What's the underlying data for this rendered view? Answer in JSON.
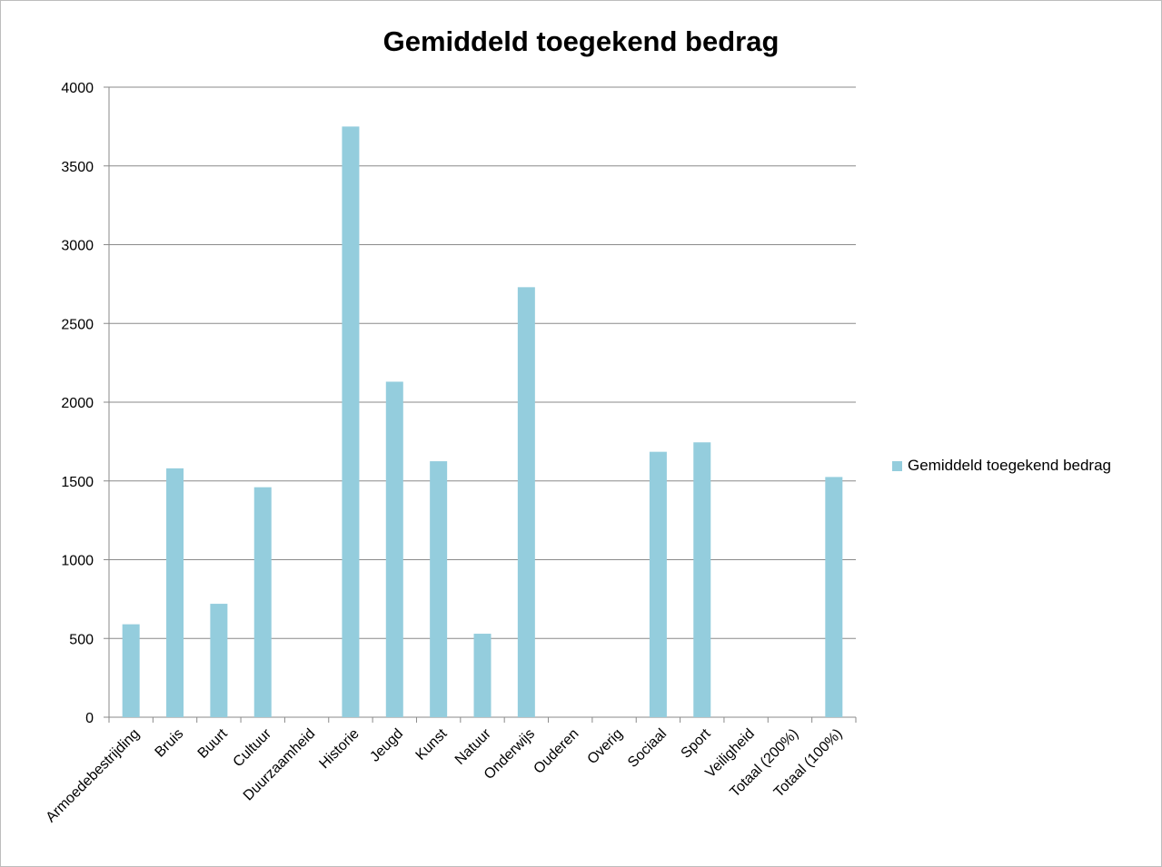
{
  "chart_data": {
    "type": "bar",
    "title": "Gemiddeld toegekend bedrag",
    "categories": [
      "Armoedebestrijding",
      "Bruis",
      "Buurt",
      "Cultuur",
      "Duurzaamheid",
      "Historie",
      "Jeugd",
      "Kunst",
      "Natuur",
      "Onderwijs",
      "Ouderen",
      "Overig",
      "Sociaal",
      "Sport",
      "Veiligheid",
      "Totaal (200%)",
      "Totaal (100%)"
    ],
    "series": [
      {
        "name": "Gemiddeld toegekend bedrag",
        "color": "#94cddd",
        "values": [
          590,
          1580,
          720,
          1460,
          0,
          3750,
          2130,
          1625,
          530,
          2730,
          0,
          0,
          1685,
          1745,
          0,
          0,
          1525
        ]
      }
    ],
    "xlabel": "",
    "ylabel": "",
    "ylim": [
      0,
      4000
    ],
    "yticks": [
      0,
      500,
      1000,
      1500,
      2000,
      2500,
      3000,
      3500,
      4000
    ],
    "grid": true,
    "legend_position": "right"
  }
}
